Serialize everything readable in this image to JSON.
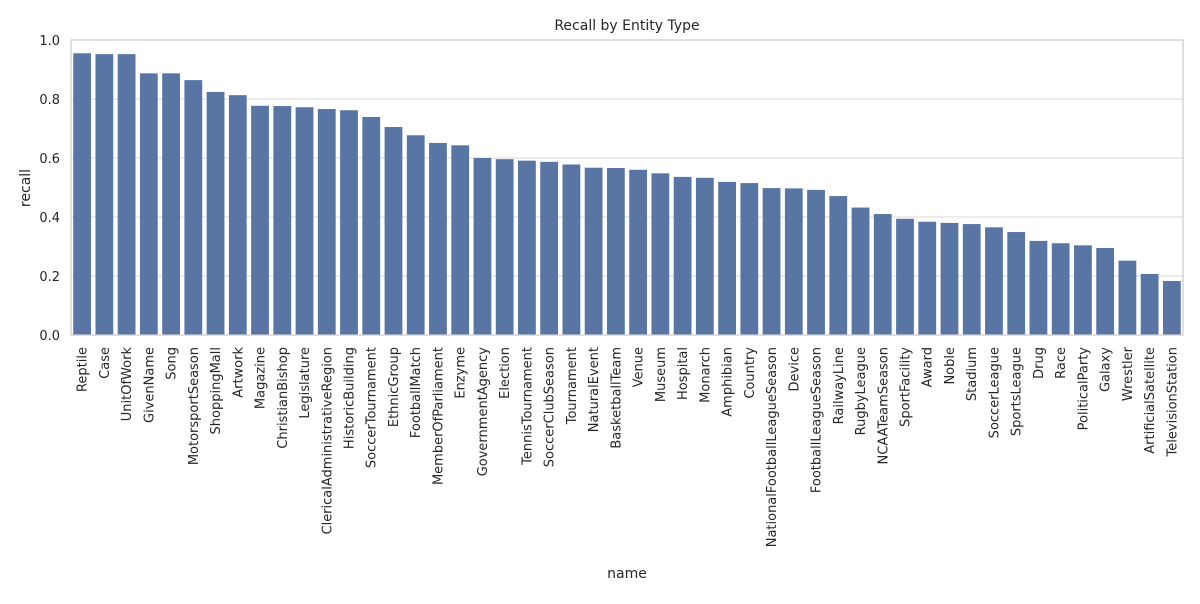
{
  "chart_data": {
    "type": "bar",
    "title": "Recall by Entity Type",
    "xlabel": "name",
    "ylabel": "recall",
    "ylim": [
      0,
      1.0
    ],
    "yticks": [
      "0.0",
      "0.2",
      "0.4",
      "0.6",
      "0.8",
      "1.0"
    ],
    "grid": "y",
    "bar_color": "#5975a4",
    "categories": [
      "Reptile",
      "Case",
      "UnitOfWork",
      "GivenName",
      "Song",
      "MotorsportSeason",
      "ShoppingMall",
      "Artwork",
      "Magazine",
      "ChristianBishop",
      "Legislature",
      "ClericalAdministrativeRegion",
      "HistoricBuilding",
      "SoccerTournament",
      "EthnicGroup",
      "FootballMatch",
      "MemberOfParliament",
      "Enzyme",
      "GovernmentAgency",
      "Election",
      "TennisTournament",
      "SoccerClubSeason",
      "Tournament",
      "NaturalEvent",
      "BasketballTeam",
      "Venue",
      "Museum",
      "Hospital",
      "Monarch",
      "Amphibian",
      "Country",
      "NationalFootballLeagueSeason",
      "Device",
      "FootballLeagueSeason",
      "RailwayLine",
      "RugbyLeague",
      "NCAATeamSeason",
      "SportFacility",
      "Award",
      "Noble",
      "Stadium",
      "SoccerLeague",
      "SportsLeague",
      "Drug",
      "Race",
      "PoliticalParty",
      "Galaxy",
      "Wrestler",
      "ArtificialSatellite",
      "TelevisionStation"
    ],
    "values": [
      0.955,
      0.952,
      0.952,
      0.887,
      0.887,
      0.864,
      0.824,
      0.813,
      0.777,
      0.776,
      0.772,
      0.766,
      0.762,
      0.739,
      0.705,
      0.677,
      0.651,
      0.643,
      0.6,
      0.596,
      0.591,
      0.587,
      0.578,
      0.567,
      0.566,
      0.56,
      0.548,
      0.536,
      0.533,
      0.519,
      0.515,
      0.498,
      0.497,
      0.492,
      0.471,
      0.432,
      0.41,
      0.394,
      0.384,
      0.38,
      0.376,
      0.365,
      0.349,
      0.319,
      0.311,
      0.304,
      0.295,
      0.252,
      0.207,
      0.183
    ]
  }
}
